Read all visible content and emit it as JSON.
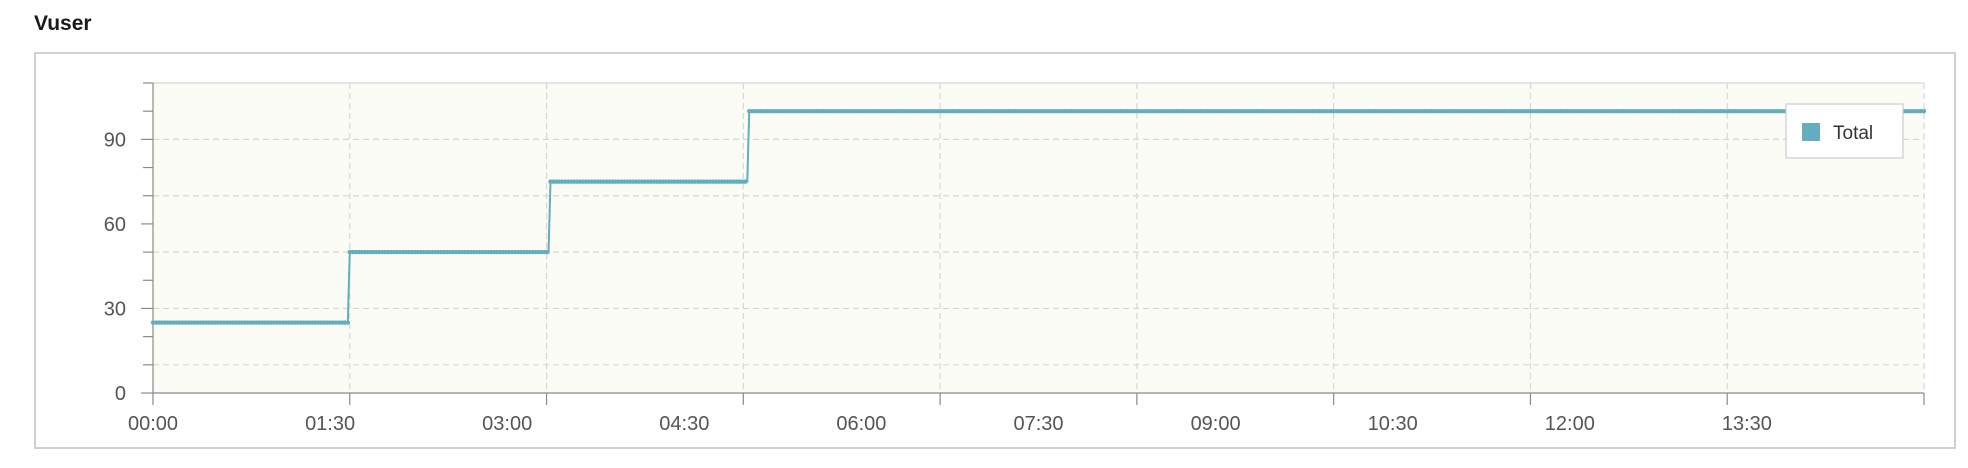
{
  "panel": {
    "title": "Vuser"
  },
  "chart_data": {
    "type": "line",
    "title": "Vuser",
    "xlabel": "",
    "ylabel": "",
    "x_unit": "seconds",
    "xlim": [
      0,
      900
    ],
    "ylim": [
      0,
      100
    ],
    "x_ticks": [
      {
        "value": 0,
        "label": "00:00"
      },
      {
        "value": 90,
        "label": "01:30"
      },
      {
        "value": 180,
        "label": "03:00"
      },
      {
        "value": 270,
        "label": "04:30"
      },
      {
        "value": 360,
        "label": "06:00"
      },
      {
        "value": 450,
        "label": "07:30"
      },
      {
        "value": 540,
        "label": "09:00"
      },
      {
        "value": 630,
        "label": "10:30"
      },
      {
        "value": 720,
        "label": "12:00"
      },
      {
        "value": 810,
        "label": "13:30"
      }
    ],
    "y_ticks": [
      0,
      30,
      60,
      90
    ],
    "y_grid": [
      10,
      30,
      50,
      70,
      90
    ],
    "x_grid": [
      100,
      200,
      300,
      400,
      500,
      600,
      700,
      800,
      900
    ],
    "grid": true,
    "legend_position": "top-right",
    "series": [
      {
        "name": "Total",
        "color": "#63adbf",
        "points": [
          [
            0,
            25
          ],
          [
            99,
            25
          ],
          [
            100,
            50
          ],
          [
            201,
            50
          ],
          [
            202,
            75
          ],
          [
            302,
            75
          ],
          [
            303,
            100
          ],
          [
            900,
            100
          ]
        ]
      }
    ]
  }
}
